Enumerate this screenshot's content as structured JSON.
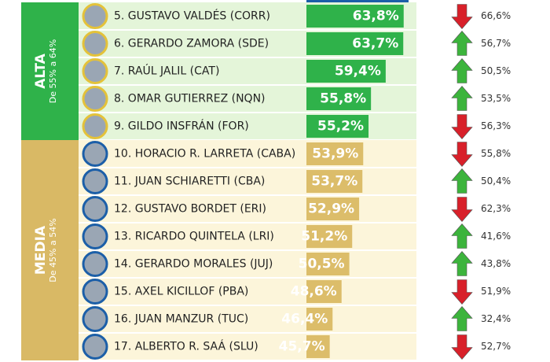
{
  "chart_data": {
    "type": "bar",
    "orientation": "horizontal",
    "groups": [
      {
        "label": "ALTA",
        "range": "De 55% a 64%",
        "color": "#2fb24a",
        "row_color": "#e4f5d9",
        "bar_color": "#2fb24a",
        "categories": [
          "5. GUSTAVO VALDÉS  (CORR)",
          "6. GERARDO ZAMORA (SDE)",
          "7. RAÚL JALIL (CAT)",
          "8. OMAR GUTIERREZ (NQN)",
          "9. GILDO INSFRÁN (FOR)"
        ],
        "values": [
          63.8,
          63.7,
          59.4,
          55.8,
          55.2
        ],
        "value_labels": [
          "63,8%",
          "63,7%",
          "59,4%",
          "55,8%",
          "55,2%"
        ],
        "previous": [
          "66,6%",
          "56,7%",
          "50,5%",
          "53,5%",
          "56,3%"
        ],
        "trend": [
          "down",
          "up",
          "up",
          "up",
          "down"
        ]
      },
      {
        "label": "MEDIA",
        "range": "De 45% a 54%",
        "color": "#d9b965",
        "row_color": "#fcf5da",
        "bar_color": "#dcbd6a",
        "categories": [
          "10. HORACIO R. LARRETA (CABA)",
          "11. JUAN SCHIARETTI (CBA)",
          "12. GUSTAVO BORDET (ERI)",
          "13. RICARDO QUINTELA (LRI)",
          "14. GERARDO MORALES (JUJ)",
          "15. AXEL KICILLOF (PBA)",
          "16. JUAN MANZUR (TUC)",
          "17.  ALBERTO R. SAÁ (SLU)"
        ],
        "values": [
          53.9,
          53.7,
          52.9,
          51.2,
          50.5,
          48.6,
          46.4,
          45.7
        ],
        "value_labels": [
          "53,9%",
          "53,7%",
          "52,9%",
          "51,2%",
          "50,5%",
          "48,6%",
          "46,4%",
          "45,7%"
        ],
        "previous": [
          "55,8%",
          "50,4%",
          "62,3%",
          "41,6%",
          "43,8%",
          "51,9%",
          "32,4%",
          "52,7%"
        ],
        "trend": [
          "down",
          "up",
          "down",
          "up",
          "up",
          "down",
          "up",
          "down"
        ]
      }
    ]
  }
}
